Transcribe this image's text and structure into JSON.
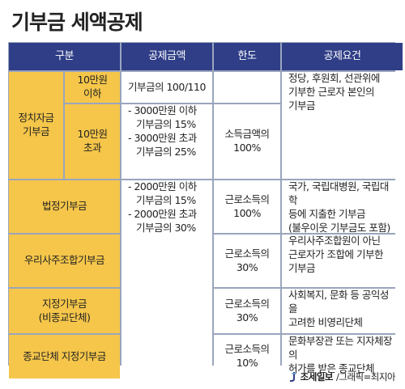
{
  "title": "기부금 세액공제",
  "header": {
    "type": "구분",
    "deduction_amount": "공제금액",
    "limit": "한도",
    "condition": "공제요건"
  },
  "political": {
    "label_line1": "정치자금",
    "label_line2": "기부금",
    "under_line1": "10만원",
    "under_line2": "이하",
    "under_amount": "기부금의 100/110",
    "over_line1": "10만원",
    "over_line2": "초과",
    "over_amount_line1": "- 3000만원 이하",
    "over_amount_line2": "기부금의 15%",
    "over_amount_line3": "- 3000만원 초과",
    "over_amount_line4": "기부금의 25%",
    "over_limit_line1": "소득금액의",
    "over_limit_line2": "100%",
    "condition_line1": "정당, 후원회, 선관위에",
    "condition_line2": "기부한 근로자 본인의",
    "condition_line3": "기부금"
  },
  "statutory": {
    "label": "법정기부금",
    "limit_line1": "근로소득의",
    "limit_line2": "100%",
    "condition_line1": "국가, 국립대병원, 국립대학",
    "condition_line2": "등에 지출한 기부금",
    "condition_line3": "(불우이웃 기부금도 포함)"
  },
  "shared_amount": {
    "line1": "- 2000만원 이하",
    "line2": "기부금의 15%",
    "line3": "- 2000만원 초과",
    "line4": "기부금의 30%"
  },
  "esop": {
    "label": "우리사주조합기부금",
    "limit_line1": "근로소득의",
    "limit_line2": "30%",
    "condition_line1": "우리사주조합원이 아닌",
    "condition_line2": "근로자가 조합에 기부한",
    "condition_line3": "기부금"
  },
  "designated": {
    "label_line1": "지정기부금",
    "label_line2": "(비종교단체)",
    "limit_line1": "근로소득의",
    "limit_line2": "30%",
    "condition_line1": "사회복지, 문화 등 공익성을",
    "condition_line2": "고려한 비영리단체"
  },
  "religious": {
    "label": "종교단체 지정기부금",
    "limit_line1": "근로소득의",
    "limit_line2": "10%",
    "condition_line1": "문화부장관 또는 지자체장의",
    "condition_line2": "허가를 받은 종교단체"
  },
  "footer": {
    "brand": "조세일보",
    "credit": "/그래픽=최지아"
  },
  "colors": {
    "header_bg": "#2f3e87",
    "label_bg": "#f5c64a",
    "border": "#9aa5bd"
  }
}
